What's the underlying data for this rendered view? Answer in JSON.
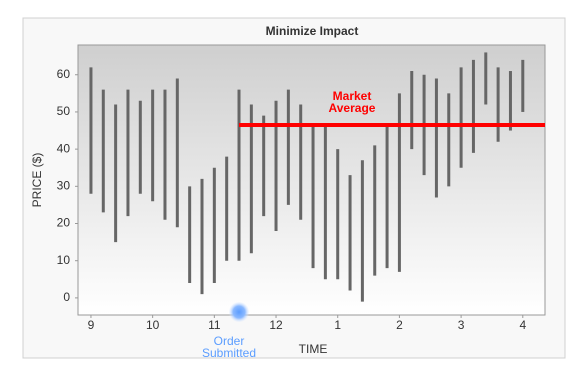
{
  "chart_data": {
    "type": "range_bar",
    "title": "Minimize Impact",
    "x_label": "TIME",
    "y_label": "PRICE ($)",
    "x": [
      9,
      9.2,
      9.4,
      9.6,
      9.8,
      10,
      10.2,
      10.4,
      10.6,
      10.8,
      11,
      11.2,
      11.4,
      11.6,
      11.8,
      12,
      12.2,
      12.4,
      12.6,
      12.8,
      13,
      13.2,
      13.4,
      13.6,
      13.8,
      14,
      14.2,
      14.4,
      14.6,
      14.8,
      15,
      15.2,
      15.4,
      15.6,
      15.8,
      16
    ],
    "low": [
      28,
      23,
      15,
      22,
      28,
      26,
      21,
      19,
      4,
      1,
      4,
      10,
      10,
      12,
      22,
      18,
      25,
      21,
      8,
      5,
      5,
      2,
      -1,
      6,
      8,
      7,
      40,
      33,
      27,
      30,
      35,
      39,
      52,
      42,
      45,
      50
    ],
    "high": [
      62,
      56,
      52,
      56,
      53,
      56,
      56,
      59,
      30,
      32,
      35,
      38,
      56,
      52,
      49,
      53,
      56,
      52,
      46,
      46,
      40,
      33,
      37,
      41,
      47,
      55,
      61,
      60,
      59,
      55,
      62,
      64,
      66,
      62,
      61,
      64
    ],
    "color": "#666666",
    "average": {
      "label": [
        "Market",
        "Average"
      ],
      "value": 46.5,
      "start": 11.4,
      "color": "#ff0000"
    },
    "order": {
      "label": [
        "Order",
        "Submitted"
      ],
      "x": 11.4,
      "color": "#5b9dff"
    },
    "xlim": [
      8.79,
      16.36
    ],
    "ylim": [
      -4.6,
      68
    ],
    "xticks": [
      9,
      10,
      11,
      12,
      {
        "value": 13,
        "label": "1"
      },
      {
        "value": 14,
        "label": "2"
      },
      {
        "value": 15,
        "label": "3"
      },
      {
        "value": 16,
        "label": "4"
      }
    ],
    "yticks": [
      0,
      10,
      20,
      30,
      40,
      50,
      60
    ]
  }
}
